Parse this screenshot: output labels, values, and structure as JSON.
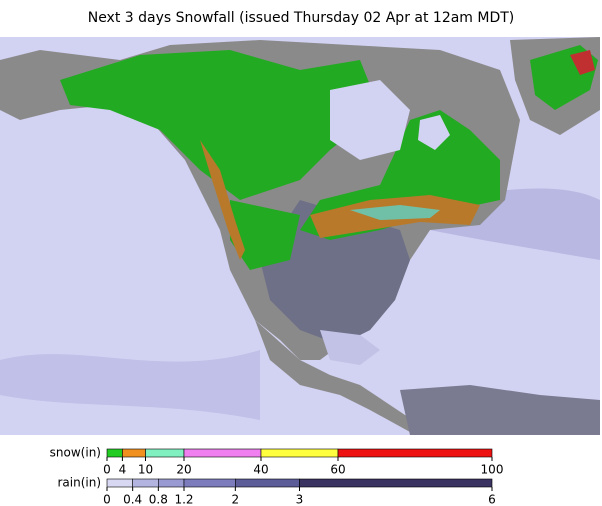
{
  "header": {
    "title": "Next 3 days Snowfall (issued Thursday 02 Apr at 12am MDT)"
  },
  "legend": {
    "snow": {
      "label": "snow(in)",
      "ticks": [
        0,
        4,
        10,
        20,
        40,
        60,
        100
      ],
      "colors": [
        "#22cc22",
        "#f0901e",
        "#80f0c0",
        "#f080f0",
        "#ffff40",
        "#ee1111"
      ]
    },
    "rain": {
      "label": "rain(in)",
      "ticks": [
        0,
        0.4,
        0.8,
        1.2,
        2,
        3,
        6
      ],
      "colors": [
        "#d8d8f2",
        "#b4b4e0",
        "#9a9ad2",
        "#7c7cbc",
        "#5c5c98",
        "#3a3260"
      ]
    }
  }
}
